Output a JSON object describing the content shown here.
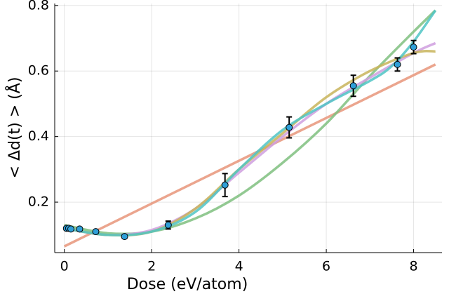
{
  "chart_data": {
    "type": "scatter",
    "x_label": "Dose (eV/atom)",
    "y_label": "< Δd(t) > (Å)",
    "xlim": [
      -0.22,
      8.65
    ],
    "ylim": [
      0.046,
      0.806
    ],
    "xticks": [
      0,
      2,
      4,
      6,
      8
    ],
    "yticks": [
      0.2,
      0.4,
      0.6,
      0.8
    ],
    "grid": true,
    "points": {
      "color": "#2f9fd8",
      "x": [
        0.05,
        0.1,
        0.15,
        0.35,
        0.72,
        1.38,
        2.38,
        3.68,
        5.15,
        6.62,
        7.63,
        8.0
      ],
      "values": [
        0.12,
        0.12,
        0.118,
        0.118,
        0.11,
        0.095,
        0.13,
        0.252,
        0.428,
        0.555,
        0.62,
        0.673
      ],
      "errors": [
        0.005,
        0.005,
        0.005,
        0.005,
        0.005,
        0.005,
        0.012,
        0.035,
        0.032,
        0.032,
        0.02,
        0.02
      ]
    },
    "series": [
      {
        "color": "#e8957a",
        "x": [
          0,
          8.5
        ],
        "values": [
          0.065,
          0.62
        ]
      },
      {
        "color": "#7fbf7f",
        "x": [
          0,
          1,
          2,
          3,
          4,
          5,
          6,
          7,
          8,
          8.5
        ],
        "values": [
          0.13,
          0.105,
          0.11,
          0.15,
          0.22,
          0.32,
          0.44,
          0.585,
          0.72,
          0.785
        ]
      },
      {
        "color": "#cf9fdf",
        "x": [
          0,
          1,
          2,
          3,
          4,
          5,
          6,
          7,
          8,
          8.5
        ],
        "values": [
          0.12,
          0.1,
          0.115,
          0.18,
          0.29,
          0.4,
          0.5,
          0.58,
          0.655,
          0.685
        ]
      },
      {
        "color": "#c8b45a",
        "x": [
          0,
          1,
          2,
          3,
          4,
          5,
          6,
          7,
          8,
          8.5
        ],
        "values": [
          0.12,
          0.1,
          0.11,
          0.18,
          0.3,
          0.41,
          0.52,
          0.6,
          0.655,
          0.66
        ]
      },
      {
        "color": "#4fc4c4",
        "x": [
          0,
          1,
          2,
          3,
          4,
          5,
          6,
          7,
          7.5,
          8,
          8.5
        ],
        "values": [
          0.12,
          0.1,
          0.11,
          0.17,
          0.3,
          0.42,
          0.5,
          0.57,
          0.615,
          0.69,
          0.785
        ]
      }
    ]
  }
}
